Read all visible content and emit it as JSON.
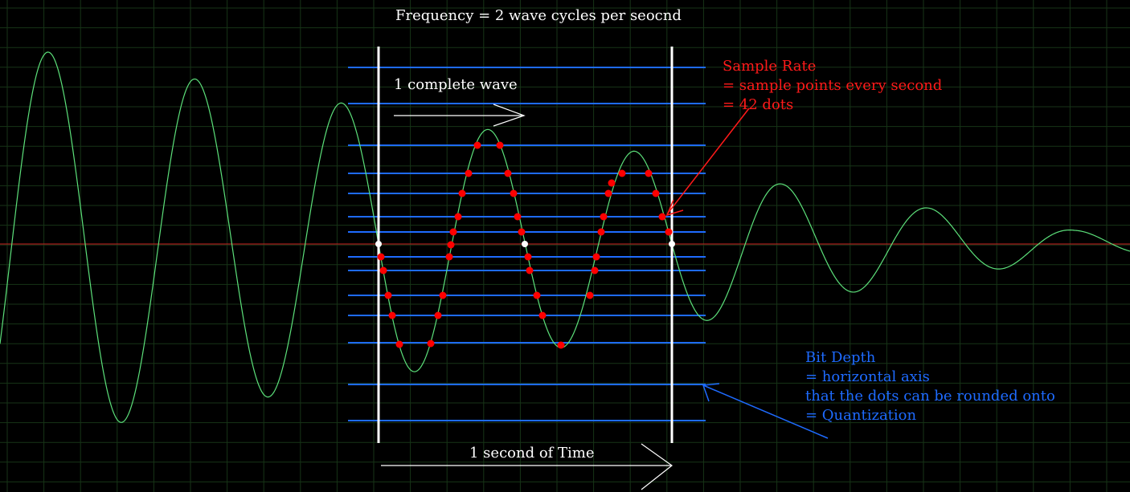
{
  "title": "Frequency = 2 wave cycles per seocnd",
  "labels": {
    "complete_wave": "1 complete wave",
    "time": "1 second of Time"
  },
  "sample_rate": {
    "line1": "Sample Rate",
    "line2": "= sample points every second",
    "line3": "= 42 dots"
  },
  "bit_depth": {
    "line1": "Bit Depth",
    "line2": "= horizontal axis",
    "line3": "that the dots can be rounded onto",
    "line4": "= Quantization"
  },
  "colors": {
    "background": "#000000",
    "grid": "#1a3a1a",
    "wave": "#5ce07a",
    "axis": "#cc2222",
    "quant_line": "#1e6bff",
    "sample_dot": "#ff0000",
    "zero_dot": "#ffffff",
    "bound": "#ffffff",
    "sample_text": "#ff1a1a",
    "bitdepth_text": "#1e6bff",
    "text": "#ffffff"
  }
}
